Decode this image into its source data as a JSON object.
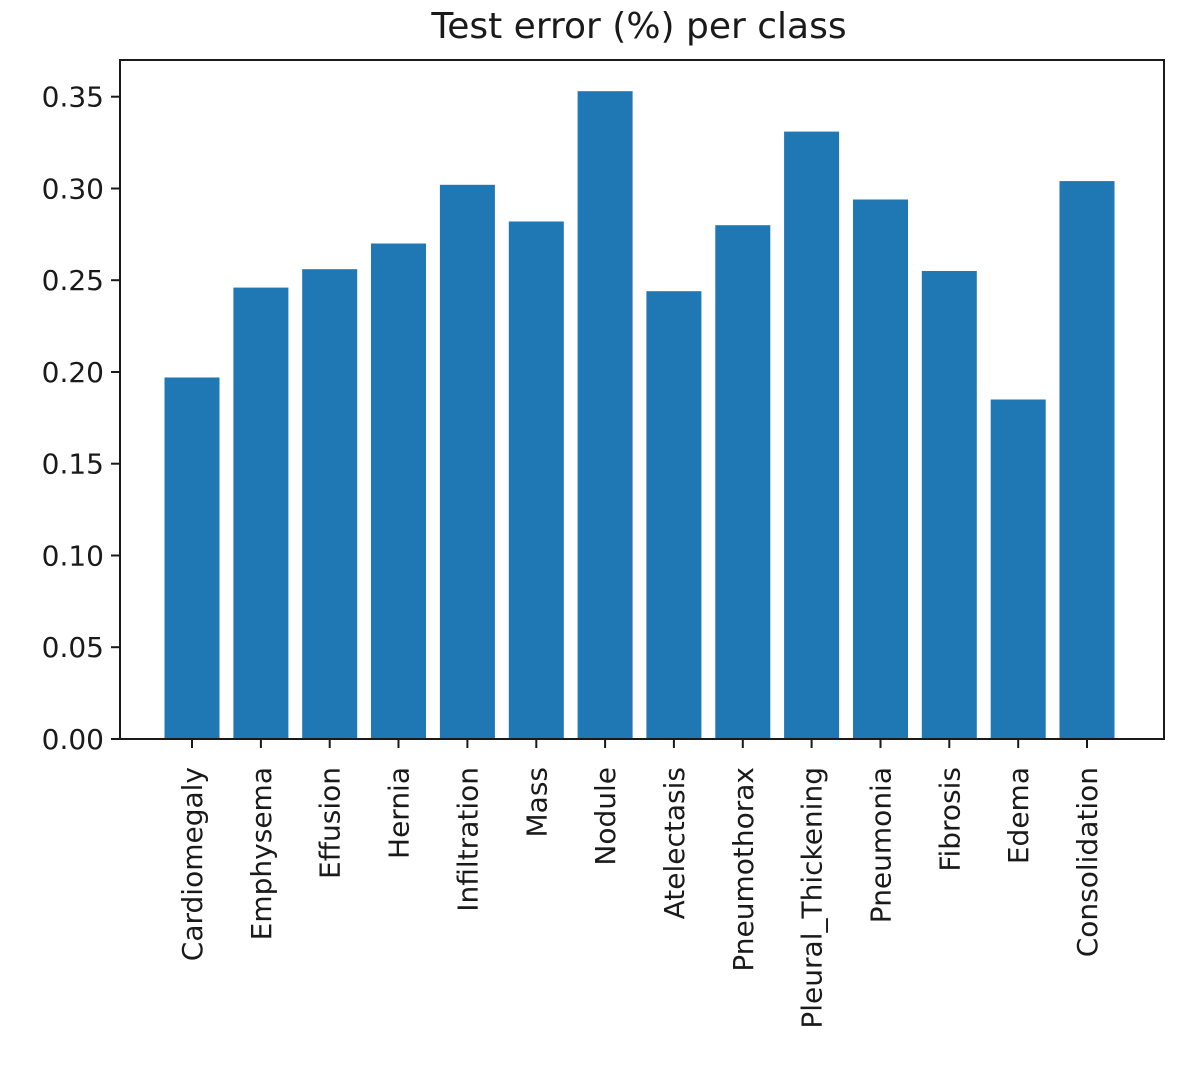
{
  "chart_data": {
    "type": "bar",
    "title": "Test error (%) per class",
    "xlabel": "",
    "ylabel": "",
    "categories": [
      "Cardiomegaly",
      "Emphysema",
      "Effusion",
      "Hernia",
      "Infiltration",
      "Mass",
      "Nodule",
      "Atelectasis",
      "Pneumothorax",
      "Pleural_Thickening",
      "Pneumonia",
      "Fibrosis",
      "Edema",
      "Consolidation"
    ],
    "values": [
      0.197,
      0.246,
      0.256,
      0.27,
      0.302,
      0.282,
      0.353,
      0.244,
      0.28,
      0.331,
      0.294,
      0.255,
      0.185,
      0.304
    ],
    "ylim": [
      0,
      0.37
    ],
    "yticks": [
      0.0,
      0.05,
      0.1,
      0.15,
      0.2,
      0.25,
      0.3,
      0.35
    ],
    "ytick_labels": [
      "0.00",
      "0.05",
      "0.10",
      "0.15",
      "0.20",
      "0.25",
      "0.30",
      "0.35"
    ],
    "grid": false,
    "legend": "none",
    "bar_color": "#1f77b4"
  }
}
